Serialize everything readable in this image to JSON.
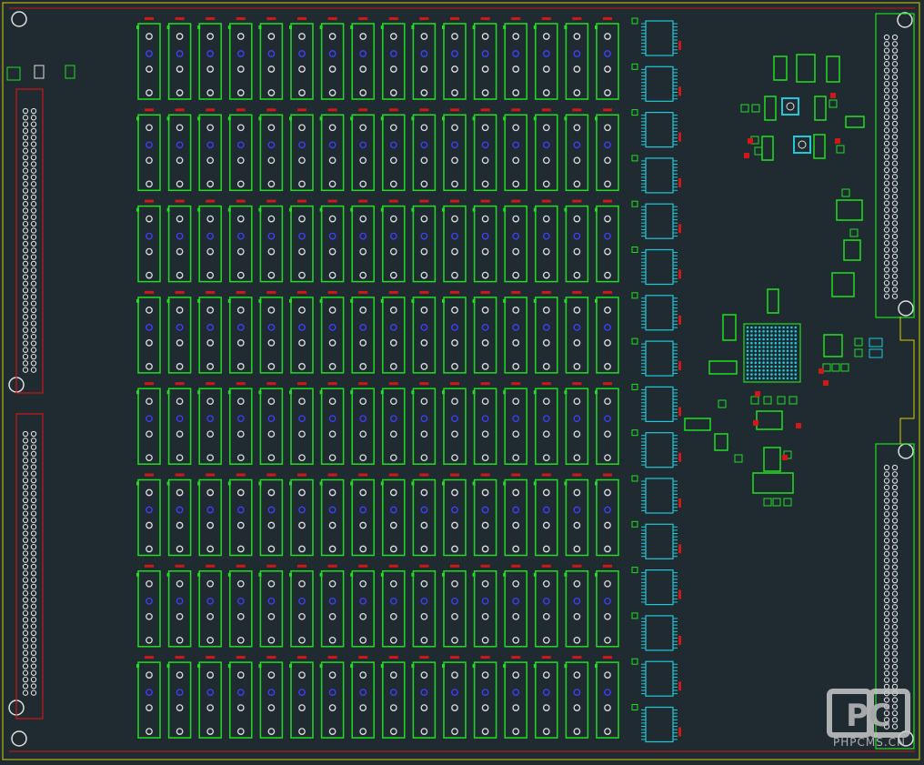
{
  "watermark": {
    "logo": "PC",
    "text": "PHPCMS.CN"
  }
}
